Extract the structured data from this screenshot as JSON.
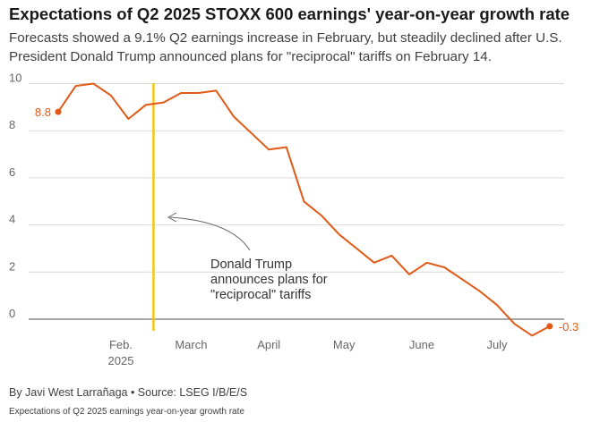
{
  "header": {
    "title": "Expectations of Q2 2025 STOXX 600 earnings' year-on-year growth rate",
    "subtitle": "Forecasts showed a 9.1% Q2 earnings increase in February, but steadily declined after U.S. President Donald Trump announced plans for \"reciprocal\" tariffs on February 14."
  },
  "footer": {
    "byline": "By Javi West Larrañaga • Source: LSEG I/B/E/S",
    "caption": "Expectations of Q2 2025 earnings year-on-year growth rate"
  },
  "chart_data": {
    "type": "line",
    "title": "Expectations of Q2 2025 STOXX 600 earnings' year-on-year growth rate",
    "xlabel": "",
    "ylabel": "",
    "ylim": [
      -0.8,
      10.2
    ],
    "yticks": [
      0,
      2,
      4,
      6,
      8,
      10
    ],
    "grid": true,
    "x_tick_labels": [
      {
        "date": "2025-02-01",
        "label": "Feb.",
        "sublabel": "2025"
      },
      {
        "date": "2025-03-01",
        "label": "March"
      },
      {
        "date": "2025-04-01",
        "label": "April"
      },
      {
        "date": "2025-05-01",
        "label": "May"
      },
      {
        "date": "2025-06-01",
        "label": "June"
      },
      {
        "date": "2025-07-01",
        "label": "July"
      }
    ],
    "x_range": [
      "2025-01-07",
      "2025-08-01"
    ],
    "series": [
      {
        "name": "",
        "color": "#e05a16",
        "x": [
          "2025-01-07",
          "2025-01-14",
          "2025-01-21",
          "2025-01-28",
          "2025-02-04",
          "2025-02-11",
          "2025-02-18",
          "2025-02-25",
          "2025-03-04",
          "2025-03-11",
          "2025-03-18",
          "2025-03-25",
          "2025-04-01",
          "2025-04-08",
          "2025-04-15",
          "2025-04-22",
          "2025-04-29",
          "2025-05-06",
          "2025-05-13",
          "2025-05-20",
          "2025-05-27",
          "2025-06-03",
          "2025-06-10",
          "2025-06-17",
          "2025-06-24",
          "2025-07-01",
          "2025-07-08",
          "2025-07-15",
          "2025-07-22",
          "2025-07-29"
        ],
        "values": [
          8.8,
          9.9,
          10.0,
          9.5,
          8.5,
          9.1,
          9.2,
          9.6,
          9.6,
          9.7,
          8.6,
          7.9,
          7.2,
          7.3,
          5.0,
          4.4,
          3.6,
          3.0,
          2.4,
          2.7,
          1.9,
          2.4,
          2.2,
          1.7,
          1.2,
          0.6,
          -0.2,
          -0.7,
          -0.3,
          null
        ]
      }
    ],
    "data_labels": [
      {
        "text": "8.8",
        "date": "2025-01-07",
        "value": 8.8
      },
      {
        "text": "-0.3",
        "date": "2025-07-22",
        "value": -0.3
      }
    ],
    "event_line": {
      "date": "2025-02-14",
      "color": "#f5c518"
    },
    "annotation": {
      "lines": [
        "Donald Trump",
        "announces plans for",
        "\"reciprocal\" tariffs"
      ]
    }
  }
}
